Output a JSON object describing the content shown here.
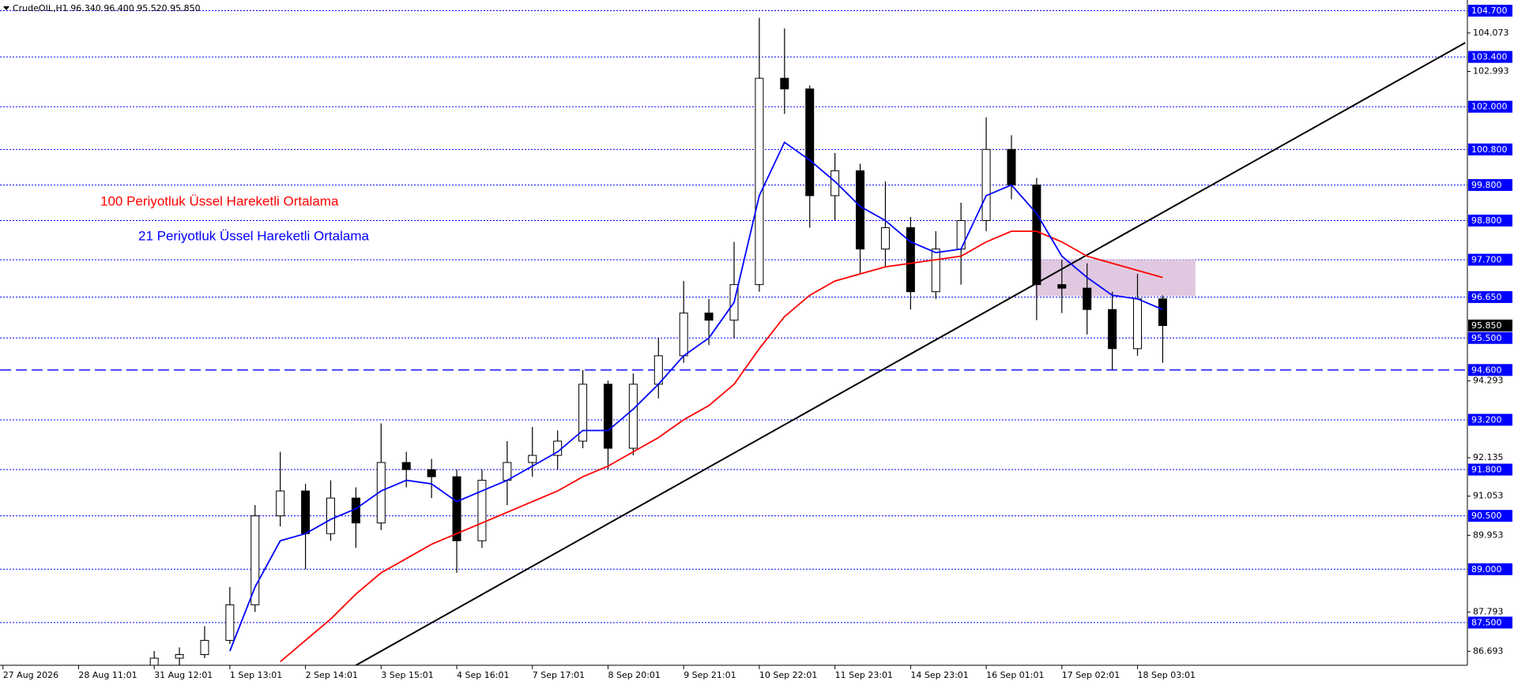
{
  "chart_data": {
    "type": "candlestick",
    "title": "CrudeOIL,H1  96.340 96.400 95.520 95.850",
    "xlim": [
      0,
      58.2
    ],
    "ylim": [
      86.3,
      105.0
    ],
    "xticks": [
      {
        "value": 0,
        "label": "27 Aug 2026"
      },
      {
        "value": 3,
        "label": "28 Aug 11:01"
      },
      {
        "value": 6,
        "label": "31 Aug 12:01"
      },
      {
        "value": 9,
        "label": "1 Sep 13:01"
      },
      {
        "value": 12,
        "label": "2 Sep 14:01"
      },
      {
        "value": 15,
        "label": "3 Sep 15:01"
      },
      {
        "value": 18,
        "label": "4 Sep 16:01"
      },
      {
        "value": 21,
        "label": "7 Sep 17:01"
      },
      {
        "value": 24,
        "label": "8 Sep 20:01"
      },
      {
        "value": 27,
        "label": "9 Sep 21:01"
      },
      {
        "value": 30,
        "label": "10 Sep 22:01"
      },
      {
        "value": 33,
        "label": "11 Sep 23:01"
      },
      {
        "value": 36,
        "label": "14 Sep 23:01"
      },
      {
        "value": 39,
        "label": "16 Sep 01:01"
      },
      {
        "value": 42,
        "label": "17 Sep 02:01"
      },
      {
        "value": 45,
        "label": "18 Sep 03:01"
      }
    ],
    "yticks": [
      104.073,
      102.993,
      94.293,
      92.135,
      91.053,
      89.953,
      87.793,
      86.693
    ],
    "levels": [
      {
        "value": 104.7,
        "label": "104.700",
        "style": "dotted"
      },
      {
        "value": 103.4,
        "label": "103.400",
        "style": "dotted"
      },
      {
        "value": 102.0,
        "label": "102.000",
        "style": "dotted"
      },
      {
        "value": 100.8,
        "label": "100.800",
        "style": "dotted"
      },
      {
        "value": 99.8,
        "label": "99.800",
        "style": "dotted"
      },
      {
        "value": 98.8,
        "label": "98.800",
        "style": "dotted"
      },
      {
        "value": 97.7,
        "label": "97.700",
        "style": "dotted"
      },
      {
        "value": 96.65,
        "label": "96.650",
        "style": "dotted"
      },
      {
        "value": 95.5,
        "label": "95.500",
        "style": "dotted"
      },
      {
        "value": 94.6,
        "label": "94.600",
        "style": "dashed"
      },
      {
        "value": 93.2,
        "label": "93.200",
        "style": "dotted"
      },
      {
        "value": 91.8,
        "label": "91.800",
        "style": "dotted"
      },
      {
        "value": 90.5,
        "label": "90.500",
        "style": "dotted"
      },
      {
        "value": 89.0,
        "label": "89.000",
        "style": "dotted"
      },
      {
        "value": 87.5,
        "label": "87.500",
        "style": "dotted"
      }
    ],
    "level_color": "#0000ff",
    "last": {
      "value": 95.85,
      "label": "95.850"
    },
    "x": [
      6,
      7,
      8,
      9,
      10,
      11,
      12,
      13,
      14,
      15,
      16,
      17,
      18,
      19,
      20,
      21,
      22,
      23,
      24,
      25,
      26,
      27,
      28,
      29,
      30,
      31,
      32,
      33,
      34,
      35,
      36,
      37,
      38,
      39,
      40,
      41,
      42,
      43,
      44,
      45,
      46
    ],
    "open": [
      86.2,
      86.5,
      86.6,
      87.0,
      88.0,
      90.5,
      91.2,
      90.0,
      91.0,
      90.3,
      92.0,
      91.8,
      91.6,
      89.8,
      91.5,
      92.0,
      92.2,
      92.6,
      94.2,
      92.4,
      94.2,
      95.0,
      96.2,
      96.0,
      97.0,
      102.8,
      102.5,
      99.5,
      100.2,
      98.0,
      98.6,
      96.8,
      98.0,
      98.8,
      100.8,
      99.8,
      97.0,
      96.9,
      96.3,
      95.2,
      96.6
    ],
    "high": [
      86.7,
      86.8,
      87.4,
      88.5,
      90.8,
      92.3,
      91.4,
      91.5,
      91.3,
      93.1,
      92.3,
      92.1,
      91.8,
      91.8,
      92.6,
      93.0,
      92.9,
      94.6,
      94.3,
      94.5,
      95.5,
      97.1,
      96.6,
      98.2,
      104.5,
      104.2,
      102.6,
      100.7,
      100.4,
      99.9,
      98.9,
      98.5,
      99.3,
      101.7,
      101.2,
      100.0,
      97.7,
      97.6,
      96.8,
      97.3,
      96.7
    ],
    "low": [
      86.1,
      86.3,
      86.5,
      86.9,
      87.8,
      90.2,
      89.0,
      89.8,
      89.6,
      90.1,
      91.3,
      91.0,
      88.9,
      89.6,
      90.8,
      91.6,
      91.8,
      92.4,
      91.8,
      92.2,
      93.8,
      94.8,
      95.3,
      95.5,
      96.8,
      101.8,
      98.6,
      98.8,
      97.3,
      97.5,
      96.3,
      96.6,
      97.0,
      98.5,
      99.4,
      96.0,
      96.2,
      95.6,
      94.6,
      95.0,
      94.8
    ],
    "close": [
      86.5,
      86.6,
      87.0,
      88.0,
      90.5,
      91.2,
      90.0,
      91.0,
      90.3,
      92.0,
      91.8,
      91.6,
      89.8,
      91.5,
      92.0,
      92.2,
      92.6,
      94.2,
      92.4,
      94.2,
      95.0,
      96.2,
      96.0,
      97.0,
      102.8,
      102.5,
      99.5,
      100.2,
      98.0,
      98.6,
      96.8,
      98.0,
      98.8,
      100.8,
      99.8,
      97.0,
      96.9,
      96.3,
      95.2,
      96.6,
      95.85
    ],
    "series": [
      {
        "name": "100 Periyotluk Üssel Hareketli Ortalama",
        "color": "#ff0000",
        "values": [
          null,
          null,
          null,
          null,
          null,
          86.4,
          87.0,
          87.6,
          88.3,
          88.9,
          89.3,
          89.7,
          90.0,
          90.3,
          90.6,
          90.9,
          91.2,
          91.6,
          91.9,
          92.3,
          92.7,
          93.2,
          93.6,
          94.2,
          95.2,
          96.1,
          96.7,
          97.1,
          97.3,
          97.5,
          97.6,
          97.7,
          97.8,
          98.2,
          98.5,
          98.5,
          98.2,
          97.8,
          97.6,
          97.4,
          97.2
        ]
      },
      {
        "name": "21 Periyotluk Üssel Hareketli Ortalama",
        "color": "#0000ff",
        "values": [
          null,
          null,
          null,
          86.7,
          88.5,
          89.8,
          90.0,
          90.4,
          90.7,
          91.2,
          91.5,
          91.4,
          90.9,
          91.2,
          91.5,
          91.9,
          92.3,
          92.9,
          92.9,
          93.5,
          94.2,
          95.0,
          95.5,
          96.5,
          99.5,
          101.0,
          100.5,
          99.9,
          99.2,
          98.8,
          98.2,
          97.9,
          98.0,
          99.5,
          99.8,
          99.0,
          97.8,
          97.2,
          96.7,
          96.6,
          96.3
        ]
      }
    ],
    "trendline": {
      "x": [
        14,
        58
      ],
      "values": [
        86.3,
        103.8
      ],
      "color": "#000000"
    },
    "zone": {
      "x0": 40.95,
      "x1": 47.3,
      "top": 97.71,
      "bottom": 96.68,
      "color": "#d8bcd8"
    }
  }
}
